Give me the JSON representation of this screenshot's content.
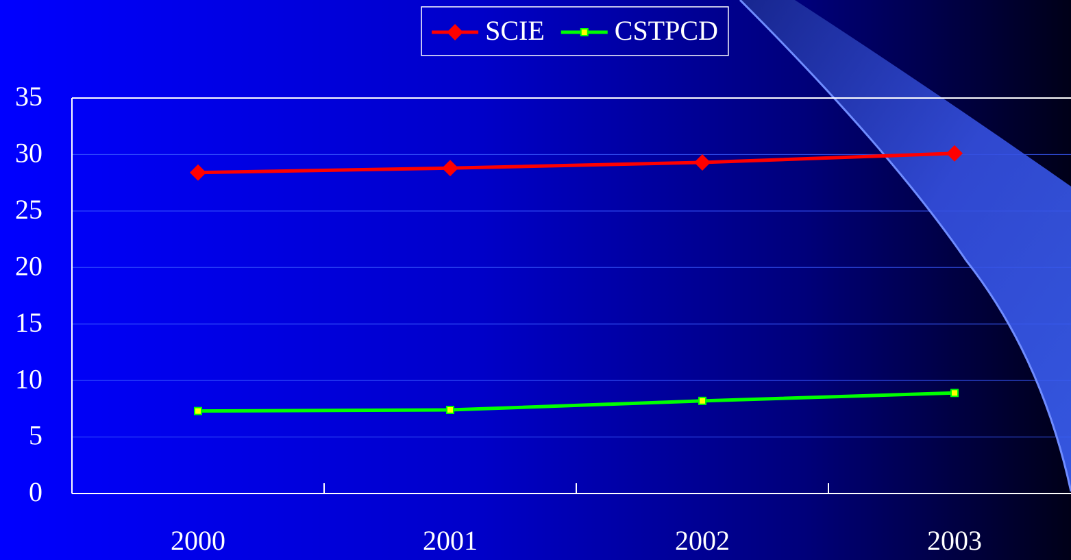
{
  "chart_data": {
    "type": "line",
    "categories": [
      "2000",
      "2001",
      "2002",
      "2003"
    ],
    "series": [
      {
        "name": "SCIE",
        "color": "#ff0000",
        "marker": "diamond",
        "values": [
          28.4,
          28.8,
          29.3,
          30.1
        ]
      },
      {
        "name": "CSTPCD",
        "color": "#00ff00",
        "marker": "square",
        "marker_color": "#ffff00",
        "values": [
          7.3,
          7.4,
          8.2,
          8.9
        ]
      }
    ],
    "ylim": [
      0,
      35
    ],
    "yticks": [
      0,
      5,
      10,
      15,
      20,
      25,
      30,
      35
    ],
    "grid": true,
    "legend": "top"
  }
}
